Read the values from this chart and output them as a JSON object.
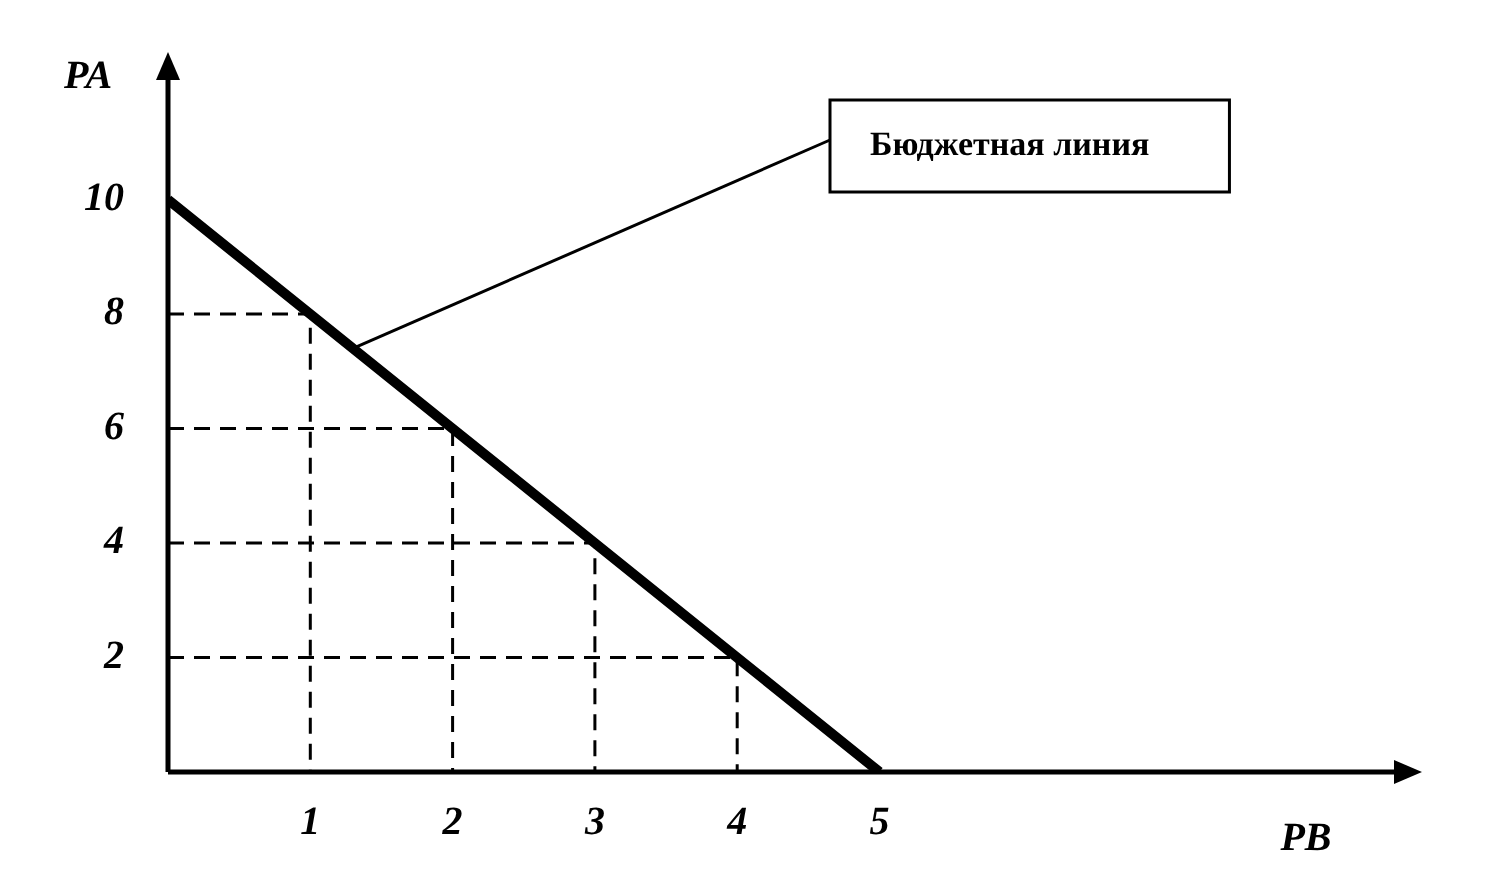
{
  "chart_data": {
    "type": "line",
    "xlabel": "PB",
    "ylabel": "PA",
    "x": [
      0,
      1,
      2,
      3,
      4,
      5
    ],
    "series": [
      {
        "color": "#000000",
        "values": [
          10,
          8,
          6,
          4,
          2,
          0
        ]
      },
      {
        "color": "#000000",
        "x": [
          0,
          1,
          1
        ],
        "values": [
          8,
          8,
          0
        ],
        "line_style": "dashed"
      },
      {
        "color": "#000000",
        "x": [
          0,
          2,
          2
        ],
        "values": [
          6,
          6,
          0
        ],
        "line_style": "dashed"
      },
      {
        "color": "#000000",
        "x": [
          0,
          3,
          3
        ],
        "values": [
          4,
          4,
          0
        ],
        "line_style": "dashed"
      },
      {
        "color": "#000000",
        "x": [
          0,
          4,
          4
        ],
        "values": [
          2,
          2,
          0
        ],
        "line_style": "dashed"
      }
    ],
    "xlim": [
      0,
      8.7
    ],
    "ylim": [
      0,
      12.3
    ],
    "xticks": [
      1,
      2,
      3,
      4,
      5
    ],
    "yticks": [
      2,
      4,
      6,
      8,
      10
    ],
    "annotations": [
      {
        "text": "Бюджетная линия",
        "x": 1.3,
        "y": 7.4
      }
    ],
    "grid": false,
    "legend": false,
    "marker": "none",
    "line_style": "solid"
  }
}
